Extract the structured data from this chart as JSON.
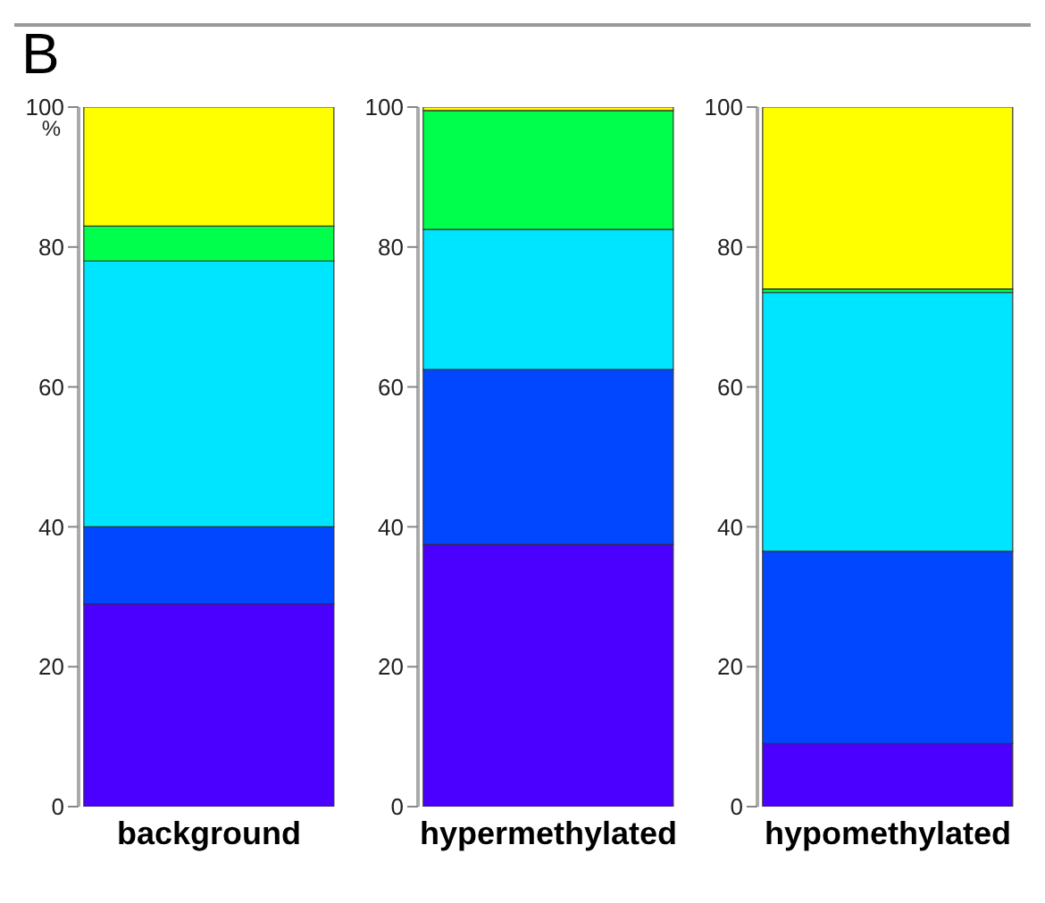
{
  "chart_data": [
    {
      "type": "bar",
      "title": "B",
      "ylabel": "%",
      "stacked": true,
      "categories": [
        "background"
      ],
      "ylim": [
        0,
        100
      ],
      "yticks": [
        0,
        20,
        40,
        60,
        80,
        100
      ],
      "series": [
        {
          "color": "#4b00ff",
          "values": [
            29
          ]
        },
        {
          "color": "#0047ff",
          "values": [
            11
          ]
        },
        {
          "color": "#00e5ff",
          "values": [
            38
          ]
        },
        {
          "color": "#00ff4c",
          "values": [
            5
          ]
        },
        {
          "color": "#ffff00",
          "values": [
            17
          ]
        }
      ]
    },
    {
      "type": "bar",
      "stacked": true,
      "categories": [
        "hypermethylated"
      ],
      "ylim": [
        0,
        100
      ],
      "yticks": [
        0,
        20,
        40,
        60,
        80,
        100
      ],
      "series": [
        {
          "color": "#4b00ff",
          "values": [
            37.5
          ]
        },
        {
          "color": "#0047ff",
          "values": [
            25
          ]
        },
        {
          "color": "#00e5ff",
          "values": [
            20
          ]
        },
        {
          "color": "#00ff4c",
          "values": [
            17
          ]
        },
        {
          "color": "#ffff00",
          "values": [
            0.5
          ]
        }
      ]
    },
    {
      "type": "bar",
      "stacked": true,
      "categories": [
        "hypomethylated"
      ],
      "ylim": [
        0,
        100
      ],
      "yticks": [
        0,
        20,
        40,
        60,
        80,
        100
      ],
      "series": [
        {
          "color": "#4b00ff",
          "values": [
            9
          ]
        },
        {
          "color": "#0047ff",
          "values": [
            27.5
          ]
        },
        {
          "color": "#00e5ff",
          "values": [
            37
          ]
        },
        {
          "color": "#00ff4c",
          "values": [
            0.5
          ]
        },
        {
          "color": "#ffff00",
          "values": [
            26
          ]
        }
      ]
    }
  ]
}
